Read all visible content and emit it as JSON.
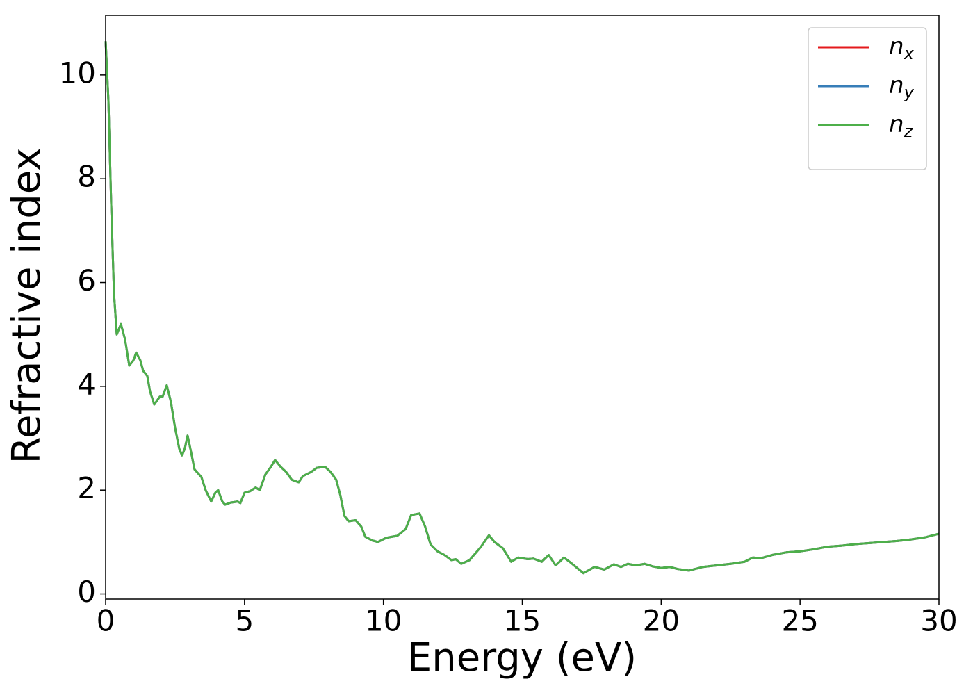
{
  "chart_data": {
    "type": "line",
    "xlabel": "Energy (eV)",
    "ylabel": "Refractive index",
    "x": [
      0,
      0.1,
      0.2,
      0.3,
      0.4,
      0.55,
      0.7,
      0.85,
      1.0,
      1.1,
      1.25,
      1.35,
      1.5,
      1.6,
      1.75,
      1.95,
      2.05,
      2.2,
      2.35,
      2.5,
      2.65,
      2.75,
      2.85,
      2.95,
      3.05,
      3.2,
      3.45,
      3.6,
      3.8,
      3.95,
      4.05,
      4.2,
      4.3,
      4.5,
      4.75,
      4.85,
      5.0,
      5.2,
      5.4,
      5.55,
      5.75,
      5.95,
      6.1,
      6.3,
      6.5,
      6.7,
      6.95,
      7.1,
      7.4,
      7.6,
      7.9,
      8.1,
      8.3,
      8.45,
      8.6,
      8.75,
      9.0,
      9.2,
      9.35,
      9.6,
      9.8,
      10.1,
      10.5,
      10.8,
      11.0,
      11.3,
      11.5,
      11.7,
      11.95,
      12.2,
      12.45,
      12.6,
      12.8,
      13.1,
      13.5,
      13.8,
      14.0,
      14.3,
      14.6,
      14.85,
      15.2,
      15.4,
      15.7,
      15.95,
      16.2,
      16.5,
      16.75,
      17.2,
      17.6,
      17.95,
      18.3,
      18.55,
      18.8,
      19.1,
      19.4,
      19.7,
      20.0,
      20.3,
      20.6,
      21.0,
      21.5,
      22.0,
      22.5,
      23.0,
      23.3,
      23.6,
      24.0,
      24.5,
      25.0,
      25.5,
      26.0,
      26.5,
      27.0,
      27.5,
      28.0,
      28.5,
      29.0,
      29.5,
      30.0
    ],
    "series": [
      {
        "name": "nx",
        "color": "#e41a1c",
        "values": [
          10.65,
          9.5,
          7.5,
          5.8,
          5.0,
          5.2,
          4.9,
          4.4,
          4.5,
          4.65,
          4.5,
          4.3,
          4.2,
          3.9,
          3.65,
          3.8,
          3.8,
          4.02,
          3.7,
          3.2,
          2.8,
          2.67,
          2.8,
          3.05,
          2.8,
          2.4,
          2.25,
          2.0,
          1.78,
          1.95,
          2.0,
          1.78,
          1.72,
          1.76,
          1.78,
          1.75,
          1.95,
          1.98,
          2.05,
          2.0,
          2.3,
          2.45,
          2.58,
          2.45,
          2.35,
          2.2,
          2.15,
          2.27,
          2.35,
          2.43,
          2.45,
          2.35,
          2.2,
          1.9,
          1.5,
          1.4,
          1.42,
          1.3,
          1.1,
          1.03,
          1.0,
          1.08,
          1.12,
          1.25,
          1.52,
          1.55,
          1.3,
          0.95,
          0.82,
          0.75,
          0.65,
          0.67,
          0.58,
          0.65,
          0.9,
          1.13,
          1.0,
          0.88,
          0.62,
          0.7,
          0.67,
          0.68,
          0.62,
          0.75,
          0.55,
          0.7,
          0.6,
          0.4,
          0.52,
          0.47,
          0.57,
          0.52,
          0.58,
          0.55,
          0.58,
          0.53,
          0.5,
          0.52,
          0.48,
          0.45,
          0.52,
          0.55,
          0.58,
          0.62,
          0.7,
          0.69,
          0.75,
          0.8,
          0.82,
          0.86,
          0.91,
          0.93,
          0.96,
          0.98,
          1.0,
          1.02,
          1.05,
          1.09,
          1.16
        ]
      },
      {
        "name": "ny",
        "color": "#377eb8",
        "values": [
          10.65,
          9.5,
          7.5,
          5.8,
          5.0,
          5.2,
          4.9,
          4.4,
          4.5,
          4.65,
          4.5,
          4.3,
          4.2,
          3.9,
          3.65,
          3.8,
          3.8,
          4.02,
          3.7,
          3.2,
          2.8,
          2.67,
          2.8,
          3.05,
          2.8,
          2.4,
          2.25,
          2.0,
          1.78,
          1.95,
          2.0,
          1.78,
          1.72,
          1.76,
          1.78,
          1.75,
          1.95,
          1.98,
          2.05,
          2.0,
          2.3,
          2.45,
          2.58,
          2.45,
          2.35,
          2.2,
          2.15,
          2.27,
          2.35,
          2.43,
          2.45,
          2.35,
          2.2,
          1.9,
          1.5,
          1.4,
          1.42,
          1.3,
          1.1,
          1.03,
          1.0,
          1.08,
          1.12,
          1.25,
          1.52,
          1.55,
          1.3,
          0.95,
          0.82,
          0.75,
          0.65,
          0.67,
          0.58,
          0.65,
          0.9,
          1.13,
          1.0,
          0.88,
          0.62,
          0.7,
          0.67,
          0.68,
          0.62,
          0.75,
          0.55,
          0.7,
          0.6,
          0.4,
          0.52,
          0.47,
          0.57,
          0.52,
          0.58,
          0.55,
          0.58,
          0.53,
          0.5,
          0.52,
          0.48,
          0.45,
          0.52,
          0.55,
          0.58,
          0.62,
          0.7,
          0.69,
          0.75,
          0.8,
          0.82,
          0.86,
          0.91,
          0.93,
          0.96,
          0.98,
          1.0,
          1.02,
          1.05,
          1.09,
          1.16
        ]
      },
      {
        "name": "nz",
        "color": "#4daf4a",
        "values": [
          10.65,
          9.5,
          7.5,
          5.8,
          5.0,
          5.2,
          4.9,
          4.4,
          4.5,
          4.65,
          4.5,
          4.3,
          4.2,
          3.9,
          3.65,
          3.8,
          3.8,
          4.02,
          3.7,
          3.2,
          2.8,
          2.67,
          2.8,
          3.05,
          2.8,
          2.4,
          2.25,
          2.0,
          1.78,
          1.95,
          2.0,
          1.78,
          1.72,
          1.76,
          1.78,
          1.75,
          1.95,
          1.98,
          2.05,
          2.0,
          2.3,
          2.45,
          2.58,
          2.45,
          2.35,
          2.2,
          2.15,
          2.27,
          2.35,
          2.43,
          2.45,
          2.35,
          2.2,
          1.9,
          1.5,
          1.4,
          1.42,
          1.3,
          1.1,
          1.03,
          1.0,
          1.08,
          1.12,
          1.25,
          1.52,
          1.55,
          1.3,
          0.95,
          0.82,
          0.75,
          0.65,
          0.67,
          0.58,
          0.65,
          0.9,
          1.13,
          1.0,
          0.88,
          0.62,
          0.7,
          0.67,
          0.68,
          0.62,
          0.75,
          0.55,
          0.7,
          0.6,
          0.4,
          0.52,
          0.47,
          0.57,
          0.52,
          0.58,
          0.55,
          0.58,
          0.53,
          0.5,
          0.52,
          0.48,
          0.45,
          0.52,
          0.55,
          0.58,
          0.62,
          0.7,
          0.69,
          0.75,
          0.8,
          0.82,
          0.86,
          0.91,
          0.93,
          0.96,
          0.98,
          1.0,
          1.02,
          1.05,
          1.09,
          1.16
        ]
      }
    ],
    "xlim": [
      0,
      30
    ],
    "xticks": [
      0,
      5,
      10,
      15,
      20,
      25,
      30
    ],
    "ylim": [
      -0.1,
      11.15
    ],
    "yticks": [
      0,
      2,
      4,
      6,
      8,
      10
    ],
    "legend": "upper right"
  }
}
